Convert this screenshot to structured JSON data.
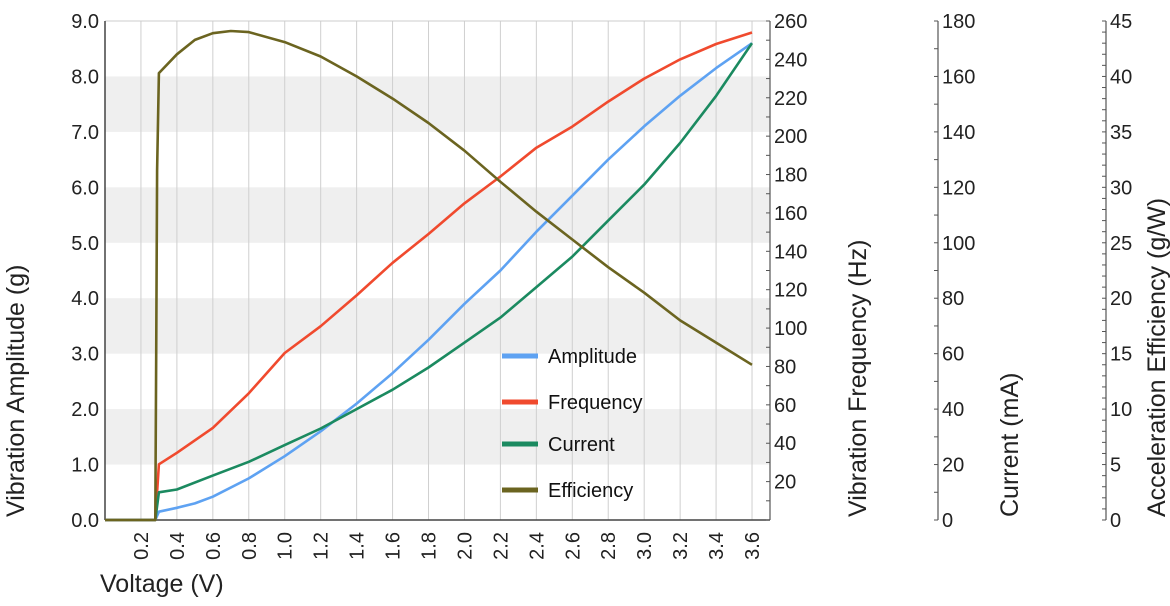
{
  "chart_data": {
    "type": "line",
    "xlabel": "Voltage (V)",
    "xlim": [
      0,
      3.7
    ],
    "xticks": [
      "0.2",
      "0.4",
      "0.6",
      "0.8",
      "1.0",
      "1.2",
      "1.4",
      "1.6",
      "1.8",
      "2.0",
      "2.2",
      "2.4",
      "2.6",
      "2.8",
      "3.0",
      "3.2",
      "3.4",
      "3.6"
    ],
    "grid": "vertical lines with alternating horizontal bands",
    "legend_placement": "lower-center",
    "axes": [
      {
        "id": "amplitude",
        "label": "Vibration Amplitude (g)",
        "side": "left",
        "ylim": [
          0,
          9
        ],
        "ticks": [
          "0.0",
          "1.0",
          "2.0",
          "3.0",
          "4.0",
          "5.0",
          "6.0",
          "7.0",
          "8.0",
          "9.0"
        ]
      },
      {
        "id": "frequency",
        "label": "Vibration Frequency (Hz)",
        "side": "right",
        "ylim": [
          0,
          260
        ],
        "ticks": [
          "20",
          "40",
          "60",
          "80",
          "100",
          "120",
          "140",
          "160",
          "180",
          "200",
          "220",
          "240",
          "260"
        ]
      },
      {
        "id": "current",
        "label": "Current (mA)",
        "side": "right-offset",
        "ylim": [
          0,
          180
        ],
        "ticks": [
          "0",
          "20",
          "40",
          "60",
          "80",
          "100",
          "120",
          "140",
          "160",
          "180"
        ]
      },
      {
        "id": "efficiency",
        "label": "Acceleration Efficiency (g/W)",
        "side": "right-offset",
        "ylim": [
          0,
          45
        ],
        "ticks": [
          "0",
          "5",
          "10",
          "15",
          "20",
          "25",
          "30",
          "35",
          "40",
          "45"
        ]
      }
    ],
    "series": [
      {
        "name": "Amplitude",
        "axis": "amplitude",
        "color": "#5ea2f2",
        "points": [
          [
            0,
            0
          ],
          [
            0.28,
            0
          ],
          [
            0.3,
            0.15
          ],
          [
            0.4,
            0.22
          ],
          [
            0.5,
            0.3
          ],
          [
            0.6,
            0.42
          ],
          [
            0.8,
            0.75
          ],
          [
            1.0,
            1.15
          ],
          [
            1.2,
            1.6
          ],
          [
            1.4,
            2.1
          ],
          [
            1.6,
            2.65
          ],
          [
            1.8,
            3.25
          ],
          [
            2.0,
            3.9
          ],
          [
            2.2,
            4.5
          ],
          [
            2.4,
            5.2
          ],
          [
            2.6,
            5.85
          ],
          [
            2.8,
            6.5
          ],
          [
            3.0,
            7.1
          ],
          [
            3.2,
            7.65
          ],
          [
            3.4,
            8.15
          ],
          [
            3.6,
            8.6
          ]
        ]
      },
      {
        "name": "Frequency",
        "axis": "frequency",
        "color": "#f04a2e",
        "points": [
          [
            0,
            0
          ],
          [
            0.28,
            0
          ],
          [
            0.3,
            29
          ],
          [
            0.4,
            35
          ],
          [
            0.6,
            48
          ],
          [
            0.8,
            66
          ],
          [
            1.0,
            87
          ],
          [
            1.2,
            101
          ],
          [
            1.4,
            117
          ],
          [
            1.6,
            134
          ],
          [
            1.8,
            149
          ],
          [
            2.0,
            165
          ],
          [
            2.2,
            179
          ],
          [
            2.4,
            194
          ],
          [
            2.6,
            205
          ],
          [
            2.8,
            218
          ],
          [
            3.0,
            230
          ],
          [
            3.2,
            240
          ],
          [
            3.4,
            248
          ],
          [
            3.6,
            254
          ]
        ]
      },
      {
        "name": "Current",
        "axis": "current",
        "color": "#1b8a60",
        "points": [
          [
            0,
            0
          ],
          [
            0.28,
            0
          ],
          [
            0.3,
            10
          ],
          [
            0.4,
            11
          ],
          [
            0.6,
            16
          ],
          [
            0.8,
            21
          ],
          [
            1.0,
            27
          ],
          [
            1.2,
            33
          ],
          [
            1.4,
            40
          ],
          [
            1.6,
            47
          ],
          [
            1.8,
            55
          ],
          [
            2.0,
            64
          ],
          [
            2.2,
            73
          ],
          [
            2.4,
            84
          ],
          [
            2.6,
            95
          ],
          [
            2.8,
            108
          ],
          [
            3.0,
            121
          ],
          [
            3.2,
            136
          ],
          [
            3.4,
            153
          ],
          [
            3.6,
            172
          ]
        ]
      },
      {
        "name": "Efficiency",
        "axis": "efficiency",
        "color": "#6b6420",
        "points": [
          [
            0,
            0
          ],
          [
            0.28,
            0
          ],
          [
            0.285,
            15
          ],
          [
            0.29,
            31.5
          ],
          [
            0.3,
            40.3
          ],
          [
            0.4,
            42
          ],
          [
            0.5,
            43.3
          ],
          [
            0.6,
            43.9
          ],
          [
            0.7,
            44.1
          ],
          [
            0.8,
            44
          ],
          [
            1.0,
            43.1
          ],
          [
            1.2,
            41.8
          ],
          [
            1.4,
            40
          ],
          [
            1.6,
            38
          ],
          [
            1.8,
            35.8
          ],
          [
            2.0,
            33.3
          ],
          [
            2.2,
            30.5
          ],
          [
            2.4,
            27.8
          ],
          [
            2.6,
            25.3
          ],
          [
            2.8,
            22.8
          ],
          [
            3.0,
            20.5
          ],
          [
            3.2,
            18
          ],
          [
            3.4,
            16
          ],
          [
            3.6,
            14
          ]
        ]
      }
    ]
  }
}
